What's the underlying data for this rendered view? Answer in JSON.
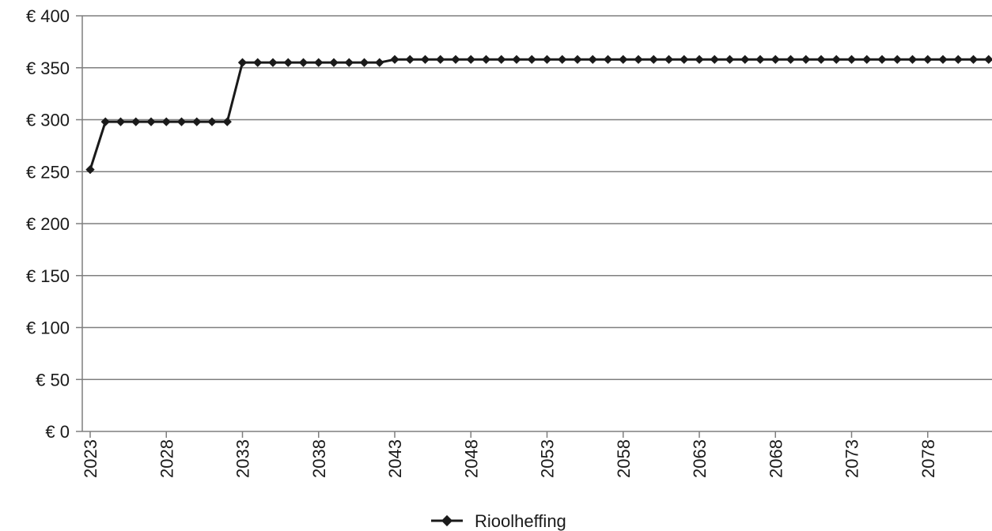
{
  "chart_data": {
    "type": "line",
    "title": "",
    "xlabel": "",
    "ylabel": "",
    "x": [
      2023,
      2024,
      2025,
      2026,
      2027,
      2028,
      2029,
      2030,
      2031,
      2032,
      2033,
      2034,
      2035,
      2036,
      2037,
      2038,
      2039,
      2040,
      2041,
      2042,
      2043,
      2044,
      2045,
      2046,
      2047,
      2048,
      2049,
      2050,
      2051,
      2052,
      2053,
      2054,
      2055,
      2056,
      2057,
      2058,
      2059,
      2060,
      2061,
      2062,
      2063,
      2064,
      2065,
      2066,
      2067,
      2068,
      2069,
      2070,
      2071,
      2072,
      2073,
      2074,
      2075,
      2076,
      2077,
      2078,
      2079,
      2080,
      2081,
      2082
    ],
    "series": [
      {
        "name": "Rioolheffing",
        "color": "#1a1a1a",
        "values": [
          252,
          298,
          298,
          298,
          298,
          298,
          298,
          298,
          298,
          298,
          355,
          355,
          355,
          355,
          355,
          355,
          355,
          355,
          355,
          355,
          358,
          358,
          358,
          358,
          358,
          358,
          358,
          358,
          358,
          358,
          358,
          358,
          358,
          358,
          358,
          358,
          358,
          358,
          358,
          358,
          358,
          358,
          358,
          358,
          358,
          358,
          358,
          358,
          358,
          358,
          358,
          358,
          358,
          358,
          358,
          358,
          358,
          358,
          358,
          358
        ]
      }
    ],
    "ylim": [
      0,
      400
    ],
    "y_ticks": [
      0,
      50,
      100,
      150,
      200,
      250,
      300,
      350,
      400
    ],
    "y_tick_labels": [
      "€ 0",
      "€ 50",
      "€ 100",
      "€ 150",
      "€ 200",
      "€ 250",
      "€ 300",
      "€ 350",
      "€ 400"
    ],
    "x_ticks": [
      2023,
      2028,
      2033,
      2038,
      2043,
      2048,
      2053,
      2058,
      2063,
      2068,
      2073,
      2078
    ],
    "x_tick_labels": [
      "2023",
      "2028",
      "2033",
      "2038",
      "2043",
      "2048",
      "2053",
      "2058",
      "2063",
      "2068",
      "2073",
      "2078"
    ],
    "grid": "horizontal",
    "legend": "bottom-center",
    "axis_color": "#7f7f7f",
    "grid_color": "#7f7f7f"
  }
}
